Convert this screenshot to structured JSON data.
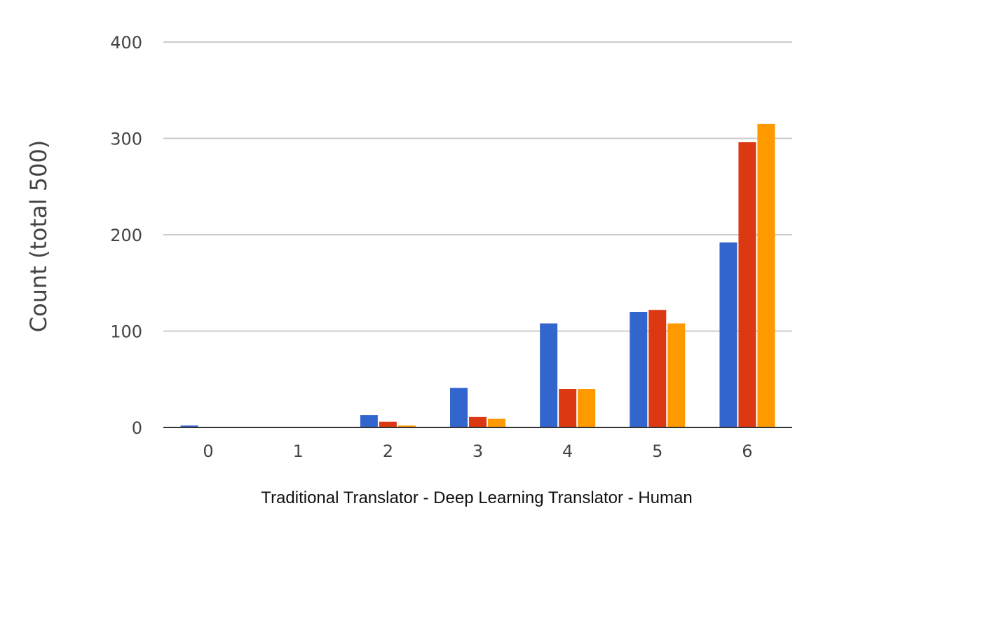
{
  "chart_data": {
    "type": "bar",
    "title": "",
    "xlabel": "Traditional Translator - Deep Learning Translator - Human",
    "ylabel": "Count (total 500)",
    "categories": [
      "0",
      "1",
      "2",
      "3",
      "4",
      "5",
      "6"
    ],
    "ylim": [
      0,
      400
    ],
    "yticks": [
      "0",
      "100",
      "200",
      "300",
      "400"
    ],
    "grid": true,
    "legend": "none",
    "series": [
      {
        "color": "#3366cc",
        "values": [
          2,
          0,
          13,
          41,
          108,
          120,
          192
        ]
      },
      {
        "color": "#dc3912",
        "values": [
          0,
          0,
          6,
          11,
          40,
          122,
          296
        ]
      },
      {
        "color": "#ff9900",
        "values": [
          0,
          0,
          2,
          9,
          40,
          108,
          315
        ]
      }
    ]
  }
}
